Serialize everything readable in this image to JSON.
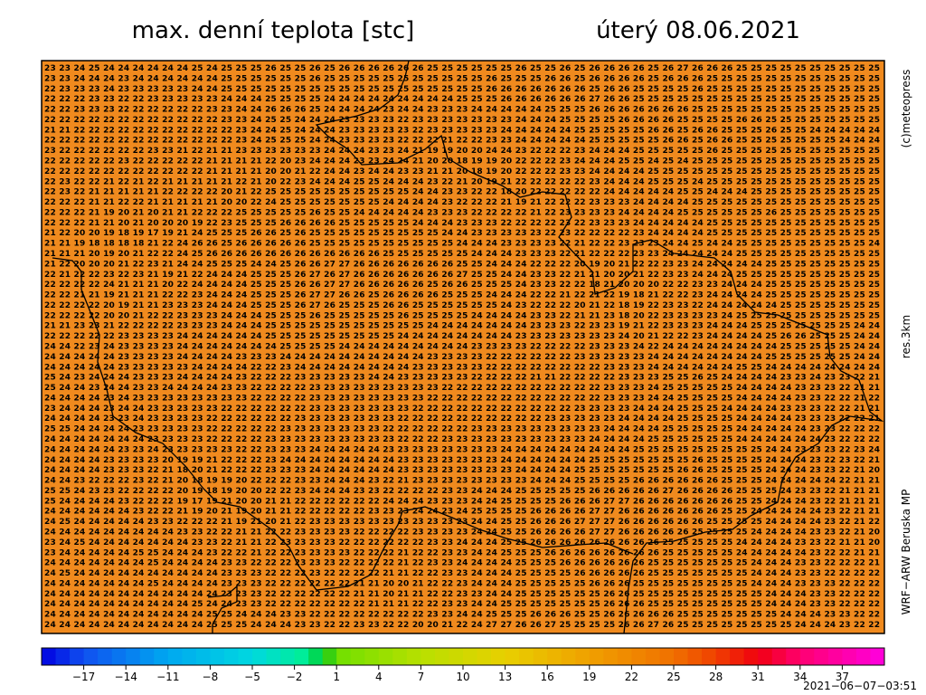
{
  "header": {
    "title": "max. denní teplota [stc]",
    "date": "úterý 08.06.2021"
  },
  "side_labels": [
    "(c)meteopress",
    "res.3km",
    "WRF−ARW Beruska MP"
  ],
  "map_color": "#f08a1e",
  "grid": {
    "rows": [
      "23 23 24 25 24 24 24 24 24 24 25 24 25 25 25 26 25 25 26 25 26 26 26 26 26 26 25 25 25 25 25 25 26 25 25 26 25 26 26 26 26 25 26 27 26 26 26 25 25 25 25 25 25 25 25 25 25",
      "23 23 24 24 24 23 24 24 24 24 24 24 25 25 25 25 25 25 26 25 25 25 25 25 25 25 25 25 25 25 26 25 25 25 26 26 25 26 26 26 26 25 26 26 26 25 25 25 25 25 25 25 25 25 25 25 25",
      "22 23 23 23 24 23 23 23 23 23 24 24 25 25 25 25 25 25 25 25 25 25 25 25 25 25 25 25 25 25 26 26 26 26 26 26 26 25 26 26 25 25 25 25 26 25 25 25 25 25 25 25 25 25 25 25 25",
      "22 22 22 23 23 22 22 23 23 23 23 23 24 24 24 25 25 25 25 24 24 24 24 24 24 24 24 24 25 25 25 26 26 26 26 26 26 27 26 26 25 25 25 25 25 25 25 25 25 25 25 25 25 25 25 25 25",
      "22 22 23 23 23 22 22 22 22 22 22 23 23 24 24 26 26 26 25 24 24 24 24 23 24 24 23 23 23 24 24 24 24 24 25 25 25 26 26 26 26 26 26 26 25 25 25 25 25 25 25 25 25 25 25 25 25",
      "22 22 22 22 22 22 22 22 22 22 22 22 23 23 24 25 25 24 24 24 23 23 23 23 22 23 23 23 23 23 23 23 24 24 24 25 25 25 25 26 26 26 26 25 25 25 25 26 26 25 25 25 25 25 25 25 25",
      "21 21 22 22 22 22 22 22 22 22 22 22 22 23 24 24 25 24 24 24 23 23 23 23 23 22 23 23 23 23 23 24 24 24 24 24 25 25 25 25 25 26 26 25 26 26 25 25 25 26 25 25 24 24 24 24 24",
      "22 22 22 22 22 22 22 22 22 22 22 22 22 23 24 25 25 25 24 24 23 23 23 23 22 22 22 21 22 22 23 23 24 24 24 24 24 25 25 25 25 25 26 26 25 26 26 25 25 25 25 25 25 25 24 24 24",
      "23 22 22 22 22 22 22 23 23 21 22 21 21 23 23 23 23 23 23 24 24 24 23 23 24 21 19 19 20 20 24 24 23 22 22 22 23 24 24 24 25 25 25 25 25 26 25 25 25 25 25 25 25 25 25 25 25",
      "22 22 22 22 22 23 22 22 22 22 22 21 21 21 21 22 20 23 24 24 24 23 23 24 24 21 20 20 18 19 19 20 22 22 22 23 24 24 24 25 25 24 25 24 25 25 25 25 25 25 25 25 25 25 25 25 25",
      "22 22 22 22 22 22 22 22 22 22 22 21 21 21 21 20 20 21 22 24 24 23 24 24 23 23 21 21 20 18 19 20 22 22 22 23 23 24 24 24 24 25 25 25 25 25 25 25 25 25 25 25 25 25 25 25 25",
      "22 23 22 22 21 22 21 22 21 21 21 21 21 22 21 20 22 23 24 24 24 25 25 24 24 24 23 22 21 20 19 21 22 22 22 22 22 23 24 24 24 25 25 25 24 25 25 25 25 25 25 25 25 25 25 25 25",
      "22 23 22 21 21 21 21 21 22 22 22 22 20 21 22 25 25 25 25 25 25 25 25 25 25 24 24 23 23 22 22 18 20 22 22 22 22 22 24 24 24 24 24 25 25 24 24 24 25 25 25 25 25 25 25 25 25",
      "22 22 22 21 21 22 22 21 21 21 21 21 20 20 22 24 25 25 25 25 25 25 25 24 24 24 24 23 22 22 22 21 19 21 22 22 22 23 23 23 24 24 24 24 25 25 25 25 25 25 25 25 25 25 25 25 25",
      "22 22 22 21 19 20 21 20 21 21 22 22 22 25 25 25 25 25 26 25 25 24 24 24 24 24 23 23 23 22 22 22 22 21 22 23 23 23 23 24 24 24 24 25 25 25 25 25 25 26 25 25 25 25 25 25 25",
      "22 22 22 21 21 20 21 20 20 20 19 22 23 25 25 25 26 26 26 26 25 25 25 25 25 24 24 24 23 23 23 22 22 22 22 23 22 23 23 23 24 24 24 24 24 25 25 25 25 25 25 25 25 25 25 25 25",
      "21 22 20 20 19 18 19 17 19 21 24 25 25 25 26 26 25 26 25 25 25 25 25 25 25 25 25 24 24 23 23 23 23 23 22 23 22 22 22 22 23 24 24 24 24 25 25 25 25 25 25 25 25 25 25 25 25",
      "21 21 19 18 18 18 18 21 22 24 26 26 25 26 26 26 26 26 25 25 25 25 25 25 25 25 25 25 24 24 24 23 23 23 23 22 21 22 22 23 23 23 24 24 25 24 24 25 25 25 25 25 25 25 25 25 24",
      "21 21 21 20 19 20 21 22 22 24 25 26 26 26 26 26 26 26 26 26 26 26 26 25 25 25 25 25 25 24 24 24 23 23 23 22 21 22 22 22 23 23 24 24 24 24 24 25 25 25 25 25 25 25 25 25 25",
      "21 22 20 20 20 21 22 23 21 24 24 25 25 25 24 24 25 26 26 27 27 26 26 26 26 26 26 26 25 25 24 24 24 22 22 22 20 19 20 21 22 22 23 23 24 24 24 24 24 25 25 25 25 25 25 25 25",
      "22 21 22 22 23 22 23 21 19 21 22 24 24 24 25 25 25 26 27 26 27 26 26 26 26 26 26 26 27 25 25 24 24 23 23 22 21 21 20 20 21 22 23 23 24 24 24 25 25 25 25 25 25 25 25 25 25",
      "22 22 22 22 24 21 21 21 20 22 24 24 24 24 25 25 25 26 26 27 27 26 26 26 26 26 25 26 26 25 25 25 24 23 23 22 22 18 21 20 20 20 22 22 23 23 24 24 24 25 25 25 25 25 25 25 25",
      "22 22 21 21 19 21 21 21 22 22 23 24 24 24 25 25 25 26 27 27 26 26 25 26 26 26 26 25 25 25 24 24 24 22 22 21 22 21 22 19 18 21 22 22 23 24 24 24 24 25 25 25 25 25 25 25 25",
      "22 22 22 22 20 19 21 21 23 23 23 24 24 24 25 25 25 26 27 26 25 25 25 26 26 25 25 25 25 25 25 24 23 22 22 22 20 21 22 18 19 22 23 23 22 24 24 24 24 24 25 25 25 25 25 25 25",
      "22 22 22 22 20 20 21 22 22 23 23 23 24 24 24 25 25 25 26 25 25 25 25 25 26 25 25 25 25 24 24 24 24 23 23 22 21 21 23 18 20 22 23 23 23 23 24 25 25 25 25 25 25 25 25 25 25",
      "21 21 23 23 21 22 22 22 22 23 23 23 24 24 24 25 25 25 25 25 25 25 25 25 25 25 24 24 24 24 24 24 24 23 23 23 22 23 23 19 21 22 23 23 23 24 24 24 25 25 25 25 25 25 25 24 24",
      "22 22 22 22 22 23 23 23 23 24 24 24 24 24 24 25 25 25 25 25 25 25 25 25 24 24 24 24 24 24 24 24 23 23 23 23 23 23 23 24 20 21 22 22 23 24 24 24 24 25 26 26 25 25 25 24 24",
      "24 24 22 23 24 23 23 23 23 24 24 24 24 24 24 24 25 25 25 25 24 24 24 24 24 24 24 24 24 23 23 23 23 22 22 22 22 23 23 23 24 22 24 24 24 24 24 24 24 24 25 25 25 25 25 24 24",
      "24 24 24 24 24 23 23 23 23 24 24 24 24 23 23 23 24 24 24 24 24 24 24 24 24 24 23 23 23 23 22 22 22 22 22 22 23 23 23 23 23 24 24 24 24 24 24 24 24 25 25 25 25 25 25 24 24",
      "24 24 24 24 24 23 23 23 23 23 24 24 24 24 22 22 23 24 24 24 24 24 24 24 24 23 23 23 23 23 22 22 22 22 22 22 22 22 23 23 23 24 24 24 24 24 24 25 25 24 24 24 24 24 24 24 24",
      "25 24 23 24 24 24 23 23 23 24 24 24 24 23 22 22 22 23 23 23 23 23 24 24 23 23 23 23 23 22 22 22 22 21 21 22 22 22 22 23 23 23 25 25 26 25 24 24 24 24 23 23 24 23 23 22 21",
      "25 24 24 23 24 24 23 23 24 24 24 24 23 23 22 22 22 22 23 23 23 23 23 23 23 23 23 22 22 22 22 22 22 22 22 22 22 22 23 23 23 24 25 25 25 25 25 24 24 24 24 23 23 23 22 21 21",
      "24 24 24 24 23 24 23 23 23 23 23 23 23 23 22 22 22 22 23 23 23 23 23 23 23 23 22 22 22 22 22 22 22 22 22 22 22 22 23 23 23 24 24 25 25 25 25 24 24 24 24 23 23 22 22 21 22",
      "23 24 24 24 23 24 24 23 23 23 23 23 22 22 22 22 22 22 23 23 23 23 23 23 23 22 22 22 22 22 22 22 22 22 22 22 23 23 23 23 24 24 24 25 25 25 24 24 24 24 23 23 23 22 22 21 21",
      "24 24 24 24 23 23 24 23 23 23 23 22 22 22 22 22 22 23 23 23 23 23 23 23 22 22 22 22 22 22 22 22 22 22 23 23 23 23 23 24 24 24 24 25 25 25 25 24 24 24 24 23 23 23 22 22 21",
      "25 25 24 24 24 24 23 23 23 23 23 22 22 22 22 22 23 23 23 23 23 23 23 22 22 22 22 22 22 23 23 23 23 23 23 23 23 23 24 24 24 24 25 25 25 25 25 24 24 24 24 24 23 23 22 22 22",
      "24 24 24 24 24 24 24 23 23 23 23 22 22 22 22 23 23 23 23 23 23 23 23 23 22 22 22 23 23 23 23 23 23 23 23 23 23 24 24 24 24 25 25 25 25 25 25 24 24 24 24 24 24 23 22 22 22",
      "24 24 24 24 24 23 23 24 23 23 23 23 23 22 22 23 23 23 24 24 24 24 24 23 23 23 23 23 23 23 23 24 24 24 24 24 24 24 24 24 25 25 25 25 25 25 25 25 25 24 24 23 23 23 22 23 24",
      "24 24 24 24 23 23 23 23 20 19 19 21 22 22 22 23 24 24 24 24 24 24 24 24 23 23 23 23 23 23 23 24 24 24 24 24 24 25 25 25 25 25 25 25 26 25 25 25 25 24 24 24 23 22 23 22 21",
      "24 24 24 24 23 23 23 22 21 18 20 21 22 22 22 23 23 23 24 24 24 24 24 24 23 23 23 23 23 23 23 23 24 24 24 24 25 25 25 25 25 25 25 26 26 25 25 25 25 24 24 24 23 23 22 21 20",
      "24 24 23 22 22 22 23 22 21 20 18 19 19 20 22 22 22 23 23 24 24 24 23 22 21 23 23 23 23 23 23 23 23 24 24 24 25 25 25 25 26 26 26 26 26 26 25 25 25 24 24 24 24 24 22 21 21",
      "25 25 24 23 23 22 22 22 22 20 19 18 19 20 20 22 22 23 24 24 24 23 23 22 22 22 22 23 23 24 24 24 25 25 25 25 25 26 26 26 26 26 27 26 26 26 26 25 25 25 24 23 23 22 21 21 21",
      "25 24 24 24 24 23 22 22 22 19 17 19 21 20 20 21 21 22 22 22 22 22 22 24 24 24 23 23 23 24 24 25 25 25 25 26 26 26 27 27 26 26 26 26 26 26 26 25 25 24 24 24 23 22 21 21 21",
      "24 24 24 24 24 24 23 22 22 21 19 20 21 19 20 21 21 22 22 22 22 22 23 23 23 24 24 23 24 25 25 25 25 26 26 26 26 27 27 26 26 26 26 26 26 26 25 25 24 24 24 24 24 23 22 21 21",
      "24 25 24 24 24 24 24 23 23 22 22 22 21 19 21 20 21 22 23 23 23 23 23 23 23 23 23 23 23 24 24 25 25 26 26 26 27 27 27 26 26 26 26 26 26 25 25 25 25 24 24 24 24 23 22 21 22",
      "24 24 24 24 24 24 24 24 24 23 23 22 22 21 21 22 22 23 23 23 23 22 22 22 22 23 23 23 23 24 24 25 25 26 26 26 26 27 27 26 26 26 26 26 25 25 25 25 24 24 24 24 23 23 22 21 20",
      "23 24 25 24 24 24 24 24 24 24 23 23 22 21 21 22 23 23 23 23 22 22 22 22 22 22 23 23 24 24 24 25 25 26 26 26 26 26 26 26 26 26 25 25 25 25 25 24 24 24 24 23 23 22 21 21 20",
      "23 24 24 24 24 24 25 25 24 24 24 23 22 22 21 22 22 23 23 23 23 22 22 22 21 22 22 23 23 24 24 25 25 25 26 26 26 26 26 26 26 26 25 25 25 25 25 24 24 24 24 24 23 22 22 21 21",
      "24 24 24 24 24 24 24 25 24 24 24 24 23 23 22 22 22 23 23 23 22 22 22 22 21 22 23 23 24 24 24 24 25 25 25 26 26 26 26 26 26 25 25 25 25 25 25 25 24 24 24 23 23 22 22 22 21",
      "24 25 24 24 24 24 24 24 24 24 24 24 23 23 23 22 22 22 23 22 22 22 22 21 21 22 22 23 23 24 24 24 25 25 25 25 26 26 26 26 26 25 25 25 25 25 25 25 24 24 24 23 23 22 22 22 22",
      "24 24 24 24 24 24 24 25 24 24 24 24 23 23 23 22 22 22 22 22 22 21 21 20 20 21 22 22 23 24 24 24 25 25 25 25 25 26 26 26 25 25 25 25 25 25 25 25 24 24 24 23 23 23 22 22 22",
      "24 24 24 24 24 24 24 24 24 24 24 24 23 23 23 22 22 22 22 22 22 21 21 20 21 21 22 22 23 23 24 24 25 25 25 25 25 25 26 26 25 25 25 25 25 25 25 25 25 24 24 24 23 23 22 22 22",
      "24 24 24 24 24 24 24 24 24 24 25 24 24 23 23 22 22 22 22 22 22 22 21 21 21 22 22 23 23 24 24 25 25 25 25 25 25 25 26 26 26 25 25 25 25 25 25 25 25 24 24 24 23 23 22 22 22",
      "24 24 24 24 24 24 24 24 24 24 24 25 25 24 24 24 23 23 22 22 22 22 22 22 22 22 23 23 24 24 25 25 25 26 26 26 25 25 26 26 26 26 26 25 25 25 25 25 25 25 24 24 24 23 23 22 22",
      "24 24 24 24 24 24 24 24 24 24 24 25 25 25 24 24 24 23 23 22 22 23 23 22 22 20 20 21 22 24 27 27 26 26 27 25 25 25 25 26 26 27 26 25 25 25 25 25 25 25 25 24 24 24 23 22 22"
    ]
  },
  "colorbar": {
    "range": [
      -20,
      40
    ],
    "stops": [
      [
        -20,
        "#0000e0"
      ],
      [
        -17,
        "#1050f0"
      ],
      [
        -11,
        "#00a8f0"
      ],
      [
        -5,
        "#00d8e0"
      ],
      [
        -1,
        "#00f090"
      ],
      [
        0,
        "#00c020"
      ],
      [
        1,
        "#70e000"
      ],
      [
        7,
        "#b8e000"
      ],
      [
        13,
        "#e8d000"
      ],
      [
        19,
        "#f0a000"
      ],
      [
        25,
        "#f07000"
      ],
      [
        28,
        "#f04000"
      ],
      [
        31,
        "#f00010"
      ],
      [
        34,
        "#ff0070"
      ],
      [
        40,
        "#ff00e0"
      ]
    ],
    "ticks": [
      {
        "value": -17,
        "label": "−17"
      },
      {
        "value": -14,
        "label": "−14"
      },
      {
        "value": -11,
        "label": "−11"
      },
      {
        "value": -8,
        "label": "−8"
      },
      {
        "value": -5,
        "label": "−5"
      },
      {
        "value": -2,
        "label": "−2"
      },
      1,
      4,
      7,
      10,
      13,
      16,
      19,
      22,
      25,
      28,
      31,
      34,
      37
    ]
  },
  "timestamp": "2021−06−07−03:51"
}
